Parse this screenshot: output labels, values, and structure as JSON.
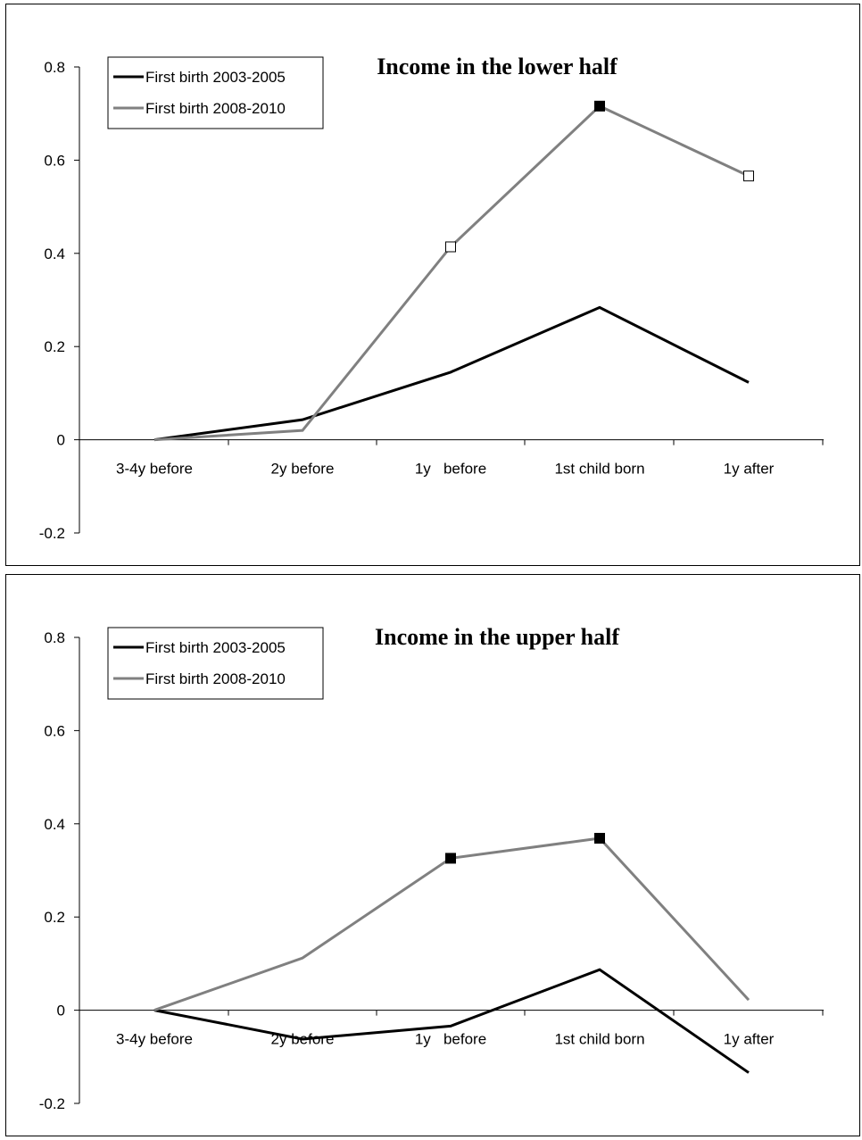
{
  "chart_data": [
    {
      "type": "line",
      "title": "Income in the lower half",
      "categories": [
        "3-4y before",
        "2y before",
        "1y   before",
        "1st child born",
        "1y after"
      ],
      "ylim": [
        -0.2,
        0.8
      ],
      "yticks": [
        "-0.2",
        "0",
        "0.2",
        "0.4",
        "0.6",
        "0.8"
      ],
      "grid": false,
      "legend_position": "top-left",
      "series": [
        {
          "name": "First birth 2003-2005",
          "color": "#000000",
          "values": [
            0,
            0.043,
            0.145,
            0.284,
            0.123
          ],
          "markers": [
            "none",
            "none",
            "none",
            "none",
            "none"
          ]
        },
        {
          "name": "First birth 2008-2010",
          "color": "#808080",
          "values": [
            0,
            0.02,
            0.414,
            0.716,
            0.566
          ],
          "markers": [
            "none",
            "none",
            "open-square",
            "filled-square",
            "open-square"
          ]
        }
      ]
    },
    {
      "type": "line",
      "title": "Income in the upper half",
      "categories": [
        "3-4y before",
        "2y before",
        "1y   before",
        "1st child born",
        "1y after"
      ],
      "ylim": [
        -0.2,
        0.8
      ],
      "yticks": [
        "-0.2",
        "0",
        "0.2",
        "0.4",
        "0.6",
        "0.8"
      ],
      "grid": false,
      "legend_position": "top-left",
      "series": [
        {
          "name": "First birth 2003-2005",
          "color": "#000000",
          "values": [
            0,
            -0.062,
            -0.034,
            0.087,
            -0.134
          ],
          "markers": [
            "none",
            "none",
            "none",
            "none",
            "none"
          ]
        },
        {
          "name": "First birth 2008-2010",
          "color": "#808080",
          "values": [
            0,
            0.112,
            0.326,
            0.369,
            0.022
          ],
          "markers": [
            "none",
            "none",
            "filled-square",
            "filled-square",
            "none"
          ]
        }
      ]
    }
  ]
}
